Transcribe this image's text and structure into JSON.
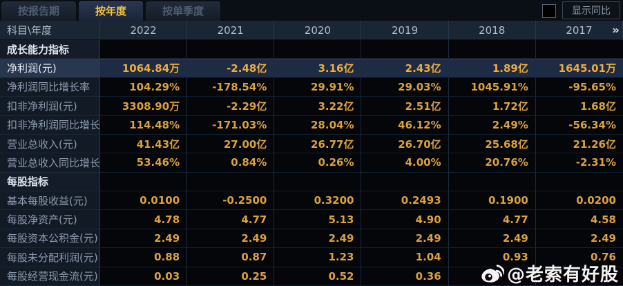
{
  "tabs": [
    {
      "label": "按报告期",
      "active": false
    },
    {
      "label": "按年度",
      "active": true
    },
    {
      "label": "按单季度",
      "active": false
    }
  ],
  "controls": {
    "show_yoy_label": "显示同比",
    "checkbox_checked": false
  },
  "table": {
    "corner_label": "科目\\年度",
    "years": [
      "2022",
      "2021",
      "2020",
      "2019",
      "2018",
      "2017"
    ],
    "more_icon": "»",
    "rows": [
      {
        "type": "section",
        "label": "成长能力指标",
        "values": [
          "",
          "",
          "",
          "",
          "",
          ""
        ]
      },
      {
        "type": "highlight",
        "label": "净利润(元)",
        "values": [
          "1064.84万",
          "-2.48亿",
          "3.16亿",
          "2.43亿",
          "1.89亿",
          "1645.01万"
        ]
      },
      {
        "type": "data",
        "label": "净利润同比增长率",
        "values": [
          "104.29%",
          "-178.54%",
          "29.91%",
          "29.03%",
          "1045.91%",
          "-95.65%"
        ]
      },
      {
        "type": "data",
        "label": "扣非净利润(元)",
        "values": [
          "3308.90万",
          "-2.29亿",
          "3.22亿",
          "2.51亿",
          "1.72亿",
          "1.68亿"
        ]
      },
      {
        "type": "data",
        "label": "扣非净利润同比增长率",
        "values": [
          "114.48%",
          "-171.03%",
          "28.04%",
          "46.12%",
          "2.49%",
          "-56.34%"
        ]
      },
      {
        "type": "data",
        "label": "营业总收入(元)",
        "values": [
          "41.43亿",
          "27.00亿",
          "26.77亿",
          "26.70亿",
          "25.68亿",
          "21.26亿"
        ]
      },
      {
        "type": "data",
        "label": "营业总收入同比增长率",
        "values": [
          "53.46%",
          "0.84%",
          "0.26%",
          "4.00%",
          "20.76%",
          "-2.31%"
        ]
      },
      {
        "type": "section",
        "label": "每股指标",
        "values": [
          "",
          "",
          "",
          "",
          "",
          ""
        ]
      },
      {
        "type": "data",
        "label": "基本每股收益(元)",
        "values": [
          "0.0100",
          "-0.2500",
          "0.3200",
          "0.2493",
          "0.1900",
          "0.0200"
        ]
      },
      {
        "type": "data",
        "label": "每股净资产(元)",
        "values": [
          "4.78",
          "4.77",
          "5.13",
          "4.90",
          "4.77",
          "4.58"
        ]
      },
      {
        "type": "data",
        "label": "每股资本公积金(元)",
        "values": [
          "2.49",
          "2.49",
          "2.49",
          "2.49",
          "2.49",
          "2.49"
        ]
      },
      {
        "type": "data",
        "label": "每股未分配利润(元)",
        "values": [
          "0.88",
          "0.87",
          "1.23",
          "1.04",
          "0.93",
          "0.76"
        ]
      },
      {
        "type": "data",
        "label": "每股经营现金流(元)",
        "values": [
          "0.03",
          "0.25",
          "0.52",
          "0.36",
          "",
          ""
        ]
      }
    ]
  },
  "watermark": {
    "text": "@老索有好股",
    "icon": "weibo-icon"
  },
  "colors": {
    "accent_value": "#dca13e",
    "highlight_value": "#f0ad3a",
    "active_tab_text": "#f2c23c",
    "header_bg": "#1b2634",
    "highlight_row_bg": "#1d2b44",
    "cell_bg": "#04060a",
    "label_col_bg": "#121a26"
  }
}
